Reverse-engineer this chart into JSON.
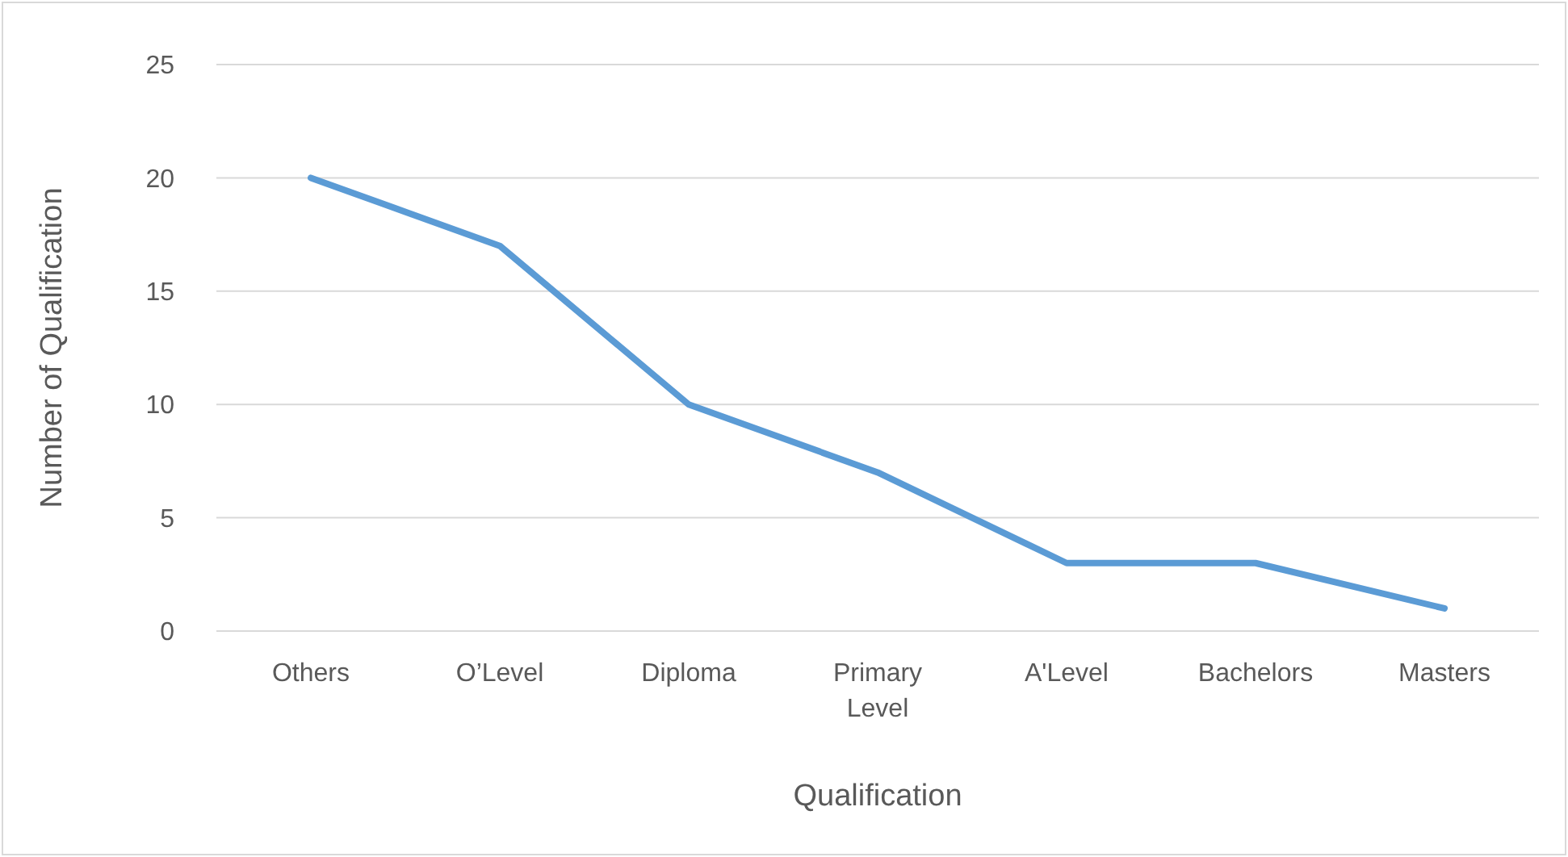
{
  "chart_data": {
    "type": "line",
    "xlabel": "Qualification",
    "ylabel": "Number of Qualification",
    "categories": [
      "Others",
      "O’Level",
      "Diploma",
      "Primary Level",
      "A'Level",
      "Bachelors",
      "Masters"
    ],
    "series": [
      {
        "color": "#5b9bd5",
        "values": [
          20,
          17,
          10,
          7,
          3,
          3,
          1
        ]
      }
    ],
    "ylim": [
      0,
      25
    ],
    "yticks": [
      0,
      5,
      10,
      15,
      20,
      25
    ],
    "grid": "y",
    "marker": "none",
    "line_style": "solid"
  }
}
